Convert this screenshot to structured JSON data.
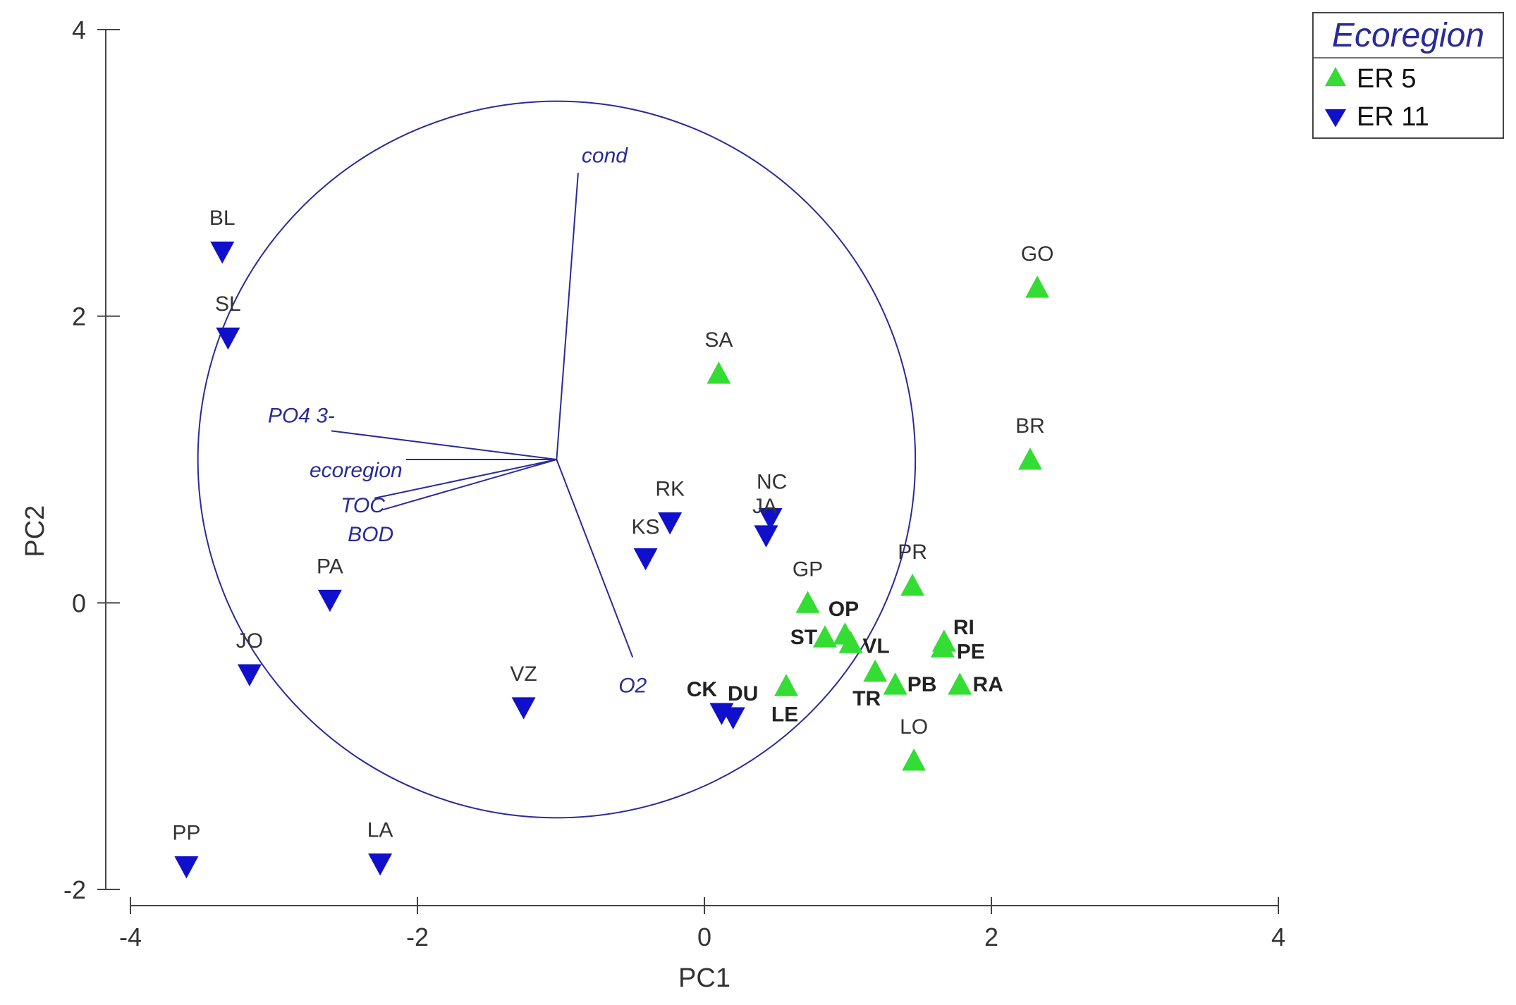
{
  "chart_data": {
    "type": "scatter",
    "xlabel": "PC1",
    "ylabel": "PC2",
    "xlim": [
      -4,
      4
    ],
    "ylim": [
      -2,
      4
    ],
    "x_ticks": [
      -4,
      -2,
      0,
      2,
      4
    ],
    "y_ticks": [
      -2,
      0,
      2,
      4
    ],
    "x_tick_labels": [
      "-4",
      "-2",
      "0",
      "2",
      "4"
    ],
    "y_tick_labels": [
      "-2",
      "0",
      "2",
      "4"
    ],
    "grid": false,
    "legend": {
      "title": "Ecoregion",
      "placement": "top-right",
      "entries": [
        {
          "label": "ER 5",
          "marker": "triangle-up",
          "color": "#33dd33"
        },
        {
          "label": "ER 11",
          "marker": "triangle-down",
          "color": "#1010cc"
        }
      ]
    },
    "series": [
      {
        "name": "ER 5",
        "marker": "triangle-up",
        "color": "#33dd33",
        "points": [
          {
            "label": "GO",
            "x": 2.32,
            "y": 2.2,
            "bold": false
          },
          {
            "label": "BR",
            "x": 2.27,
            "y": 1.0,
            "bold": false
          },
          {
            "label": "SA",
            "x": 0.1,
            "y": 1.6,
            "bold": false
          },
          {
            "label": "PR",
            "x": 1.45,
            "y": 0.12,
            "bold": false
          },
          {
            "label": "GP",
            "x": 0.72,
            "y": 0.0,
            "bold": false
          },
          {
            "label": "OP",
            "x": 0.98,
            "y": -0.22,
            "bold": true
          },
          {
            "label": "ST",
            "x": 0.84,
            "y": -0.24,
            "bold": true
          },
          {
            "label": "VL",
            "x": 1.02,
            "y": -0.28,
            "bold": true
          },
          {
            "label": "RI",
            "x": 1.67,
            "y": -0.27,
            "bold": true
          },
          {
            "label": "PE",
            "x": 1.66,
            "y": -0.31,
            "bold": true
          },
          {
            "label": "TR",
            "x": 1.19,
            "y": -0.48,
            "bold": true
          },
          {
            "label": "PB",
            "x": 1.33,
            "y": -0.57,
            "bold": true
          },
          {
            "label": "RA",
            "x": 1.78,
            "y": -0.57,
            "bold": true
          },
          {
            "label": "LE",
            "x": 0.57,
            "y": -0.58,
            "bold": true
          },
          {
            "label": "LO",
            "x": 1.46,
            "y": -1.1,
            "bold": false
          }
        ]
      },
      {
        "name": "ER 11",
        "marker": "triangle-down",
        "color": "#1010cc",
        "points": [
          {
            "label": "BL",
            "x": -3.36,
            "y": 2.45,
            "bold": false
          },
          {
            "label": "SL",
            "x": -3.32,
            "y": 1.85,
            "bold": false
          },
          {
            "label": "PA",
            "x": -2.61,
            "y": 0.02,
            "bold": false
          },
          {
            "label": "JO",
            "x": -3.17,
            "y": -0.5,
            "bold": false
          },
          {
            "label": "VZ",
            "x": -1.26,
            "y": -0.73,
            "bold": false
          },
          {
            "label": "RK",
            "x": -0.24,
            "y": 0.56,
            "bold": false
          },
          {
            "label": "KS",
            "x": -0.41,
            "y": 0.31,
            "bold": false
          },
          {
            "label": "NC",
            "x": 0.46,
            "y": 0.59,
            "bold": false
          },
          {
            "label": "JA",
            "x": 0.43,
            "y": 0.47,
            "bold": false
          },
          {
            "label": "CK",
            "x": 0.12,
            "y": -0.77,
            "bold": true
          },
          {
            "label": "DU",
            "x": 0.2,
            "y": -0.8,
            "bold": true
          },
          {
            "label": "PP",
            "x": -3.61,
            "y": -1.84,
            "bold": false
          },
          {
            "label": "LA",
            "x": -2.26,
            "y": -1.82,
            "bold": false
          }
        ]
      }
    ],
    "correlation_circle": {
      "center": [
        -1.03,
        1.0
      ],
      "radius": 2.5,
      "color": "#2a2a99"
    },
    "vectors": [
      {
        "label": "cond",
        "x": -0.88,
        "y": 3.0
      },
      {
        "label": "PO4 3-",
        "x": -2.6,
        "y": 1.2
      },
      {
        "label": "ecoregion",
        "x": -2.08,
        "y": 1.0
      },
      {
        "label": "TOC",
        "x": -2.3,
        "y": 0.73
      },
      {
        "label": "BOD",
        "x": -2.24,
        "y": 0.65
      },
      {
        "label": "O2",
        "x": -0.5,
        "y": -0.38
      }
    ]
  }
}
